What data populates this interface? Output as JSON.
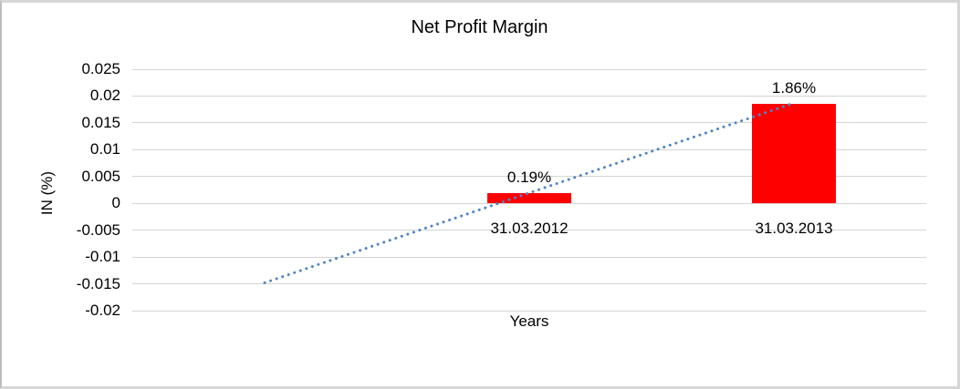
{
  "chart_data": {
    "type": "bar",
    "title": "Net Profit Margin",
    "xlabel": "Years",
    "ylabel": "IN (%)",
    "categories": [
      "31.03.2012",
      "31.03.2013"
    ],
    "series": [
      {
        "name": "Net Profit Margin",
        "values": [
          0.0019,
          0.0186
        ]
      }
    ],
    "data_labels": [
      "0.19%",
      "1.86%"
    ],
    "bar_color": "#ff0000",
    "ylim": [
      -0.02,
      0.025
    ],
    "ytick_labels": [
      "0.025",
      "0.02",
      "0.015",
      "0.01",
      "0.005",
      "0",
      "-0.005",
      "-0.01",
      "-0.015",
      "-0.02"
    ],
    "grid": true,
    "legend": "none",
    "gridline_color": "#d4d4d4",
    "text_color": "#000000",
    "n_slots": 3,
    "bar_slots": [
      1,
      2
    ],
    "trendline": {
      "style": "dotted",
      "color": "#4f86c6",
      "start": {
        "slot": 0,
        "value": -0.0148
      },
      "end": {
        "slot": 2,
        "value": 0.0187
      }
    }
  }
}
